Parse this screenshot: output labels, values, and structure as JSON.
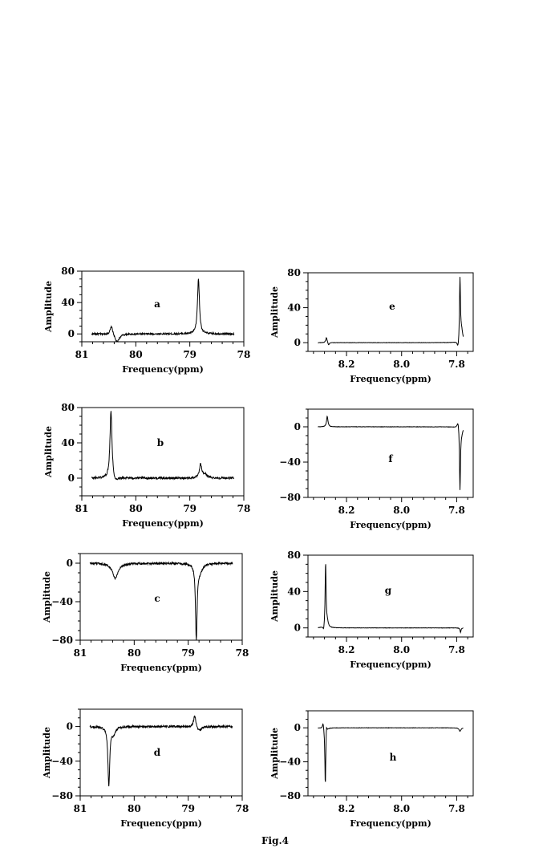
{
  "figure": {
    "caption": "Fig.4"
  },
  "chart_data": [
    {
      "id": "a",
      "type": "line",
      "label": "a",
      "xlabel": "Frequency(ppm)",
      "ylabel": "Amplitude",
      "xlim": [
        81,
        78
      ],
      "ylim": [
        -10,
        80
      ],
      "xticks": [
        "81",
        "80",
        "79",
        "78"
      ],
      "xtick_values": [
        81,
        80,
        79,
        78
      ],
      "yticks": [
        "0",
        "40",
        "80"
      ],
      "ytick_values": [
        0,
        40,
        80
      ],
      "series": [
        {
          "baseline": 0,
          "features": [
            {
              "pos": 80.45,
              "height": 11,
              "width": 0.03
            },
            {
              "pos": 80.35,
              "height": -11,
              "width": 0.05
            },
            {
              "pos": 78.84,
              "height": 70,
              "width": 0.022
            }
          ]
        }
      ]
    },
    {
      "id": "b",
      "type": "line",
      "label": "b",
      "xlabel": "Frequency(ppm)",
      "ylabel": "Amplitude",
      "xlim": [
        81,
        78
      ],
      "ylim": [
        -20,
        80
      ],
      "xticks": [
        "81",
        "80",
        "79",
        "78"
      ],
      "xtick_values": [
        81,
        80,
        79,
        78
      ],
      "yticks": [
        "0",
        "40",
        "80"
      ],
      "ytick_values": [
        0,
        40,
        80
      ],
      "series": [
        {
          "baseline": 0,
          "features": [
            {
              "pos": 80.46,
              "height": 78,
              "width": 0.022
            },
            {
              "pos": 80.38,
              "height": -6,
              "width": 0.04
            },
            {
              "pos": 78.8,
              "height": 15,
              "width": 0.025
            },
            {
              "pos": 78.72,
              "height": 4,
              "width": 0.05
            }
          ]
        }
      ]
    },
    {
      "id": "c",
      "type": "line",
      "label": "c",
      "xlabel": "Frequency(ppm)",
      "ylabel": "Amplitude",
      "xlim": [
        81,
        78
      ],
      "ylim": [
        -80,
        10
      ],
      "xticks": [
        "81",
        "80",
        "79",
        "78"
      ],
      "xtick_values": [
        81,
        80,
        79,
        78
      ],
      "yticks": [
        "0",
        "−40",
        "−80"
      ],
      "ytick_values": [
        0,
        -40,
        -80
      ],
      "series": [
        {
          "baseline": 0,
          "features": [
            {
              "pos": 80.35,
              "height": -16,
              "width": 0.06
            },
            {
              "pos": 78.85,
              "height": -77,
              "width": 0.018
            },
            {
              "pos": 78.78,
              "height": -8,
              "width": 0.05
            }
          ]
        }
      ]
    },
    {
      "id": "d",
      "type": "line",
      "label": "d",
      "xlabel": "Frequency(ppm)",
      "ylabel": "Amplitude",
      "xlim": [
        81,
        78
      ],
      "ylim": [
        -80,
        20
      ],
      "xticks": [
        "81",
        "80",
        "79",
        "78"
      ],
      "xtick_values": [
        81,
        80,
        79,
        78
      ],
      "yticks": [
        "0",
        "−40",
        "−80"
      ],
      "ytick_values": [
        0,
        -40,
        -80
      ],
      "series": [
        {
          "baseline": 0,
          "features": [
            {
              "pos": 80.47,
              "height": -68,
              "width": 0.02
            },
            {
              "pos": 80.38,
              "height": -8,
              "width": 0.04
            },
            {
              "pos": 78.88,
              "height": 14,
              "width": 0.025
            },
            {
              "pos": 78.8,
              "height": -5,
              "width": 0.05
            }
          ]
        }
      ]
    },
    {
      "id": "e",
      "type": "line",
      "label": "e",
      "xlabel": "Frequency(ppm)",
      "ylabel": "Amplitude",
      "xlim": [
        8.34,
        7.74
      ],
      "ylim": [
        -10,
        80
      ],
      "xticks": [
        "8.2",
        "8.0",
        "7.8"
      ],
      "xtick_values": [
        8.2,
        8.0,
        7.8
      ],
      "yticks": [
        "0",
        "40",
        "80"
      ],
      "ytick_values": [
        0,
        40,
        80
      ],
      "series": [
        {
          "baseline": 0,
          "features": [
            {
              "pos": 8.273,
              "height": 6,
              "width": 0.003
            },
            {
              "pos": 8.265,
              "height": -3,
              "width": 0.003
            },
            {
              "pos": 7.795,
              "height": -9,
              "width": 0.004
            },
            {
              "pos": 7.788,
              "height": 73,
              "width": 0.002
            },
            {
              "pos": 7.782,
              "height": 13,
              "width": 0.005
            }
          ]
        }
      ]
    },
    {
      "id": "f",
      "type": "line",
      "label": "f",
      "xlabel": "Frequency(ppm)",
      "ylabel": "",
      "xlim": [
        8.34,
        7.74
      ],
      "ylim": [
        -80,
        20
      ],
      "xticks": [
        "8.2",
        "8.0",
        "7.8"
      ],
      "xtick_values": [
        8.2,
        8.0,
        7.8
      ],
      "yticks": [
        "0",
        "−40",
        "−80"
      ],
      "ytick_values": [
        0,
        -40,
        -80
      ],
      "series": [
        {
          "baseline": 0,
          "features": [
            {
              "pos": 8.27,
              "height": 12,
              "width": 0.003
            },
            {
              "pos": 7.795,
              "height": 9,
              "width": 0.004
            },
            {
              "pos": 7.788,
              "height": -72,
              "width": 0.002
            },
            {
              "pos": 7.782,
              "height": -6,
              "width": 0.005
            }
          ]
        }
      ]
    },
    {
      "id": "g",
      "type": "line",
      "label": "g",
      "xlabel": "Frequency(ppm)",
      "ylabel": "Amplitude",
      "xlim": [
        8.34,
        7.74
      ],
      "ylim": [
        -10,
        80
      ],
      "xticks": [
        "8.2",
        "8.0",
        "7.8"
      ],
      "xtick_values": [
        8.2,
        8.0,
        7.8
      ],
      "yticks": [
        "0",
        "40",
        "80"
      ],
      "ytick_values": [
        0,
        40,
        80
      ],
      "series": [
        {
          "baseline": 0,
          "features": [
            {
              "pos": 8.283,
              "height": -6,
              "width": 0.003
            },
            {
              "pos": 8.276,
              "height": 72,
              "width": 0.002
            },
            {
              "pos": 8.27,
              "height": 6,
              "width": 0.004
            },
            {
              "pos": 7.786,
              "height": -5,
              "width": 0.002
            }
          ]
        }
      ]
    },
    {
      "id": "h",
      "type": "line",
      "label": "h",
      "xlabel": "Frequency(ppm)",
      "ylabel": "Amplitude",
      "xlim": [
        8.34,
        7.74
      ],
      "ylim": [
        -80,
        20
      ],
      "xticks": [
        "8.2",
        "8.0",
        "7.8"
      ],
      "xtick_values": [
        8.2,
        8.0,
        7.8
      ],
      "yticks": [
        "0",
        "−40",
        "−80"
      ],
      "ytick_values": [
        0,
        -40,
        -80
      ],
      "series": [
        {
          "baseline": 0,
          "features": [
            {
              "pos": 8.285,
              "height": 8,
              "width": 0.003
            },
            {
              "pos": 8.277,
              "height": -70,
              "width": 0.002
            },
            {
              "pos": 8.273,
              "height": 12,
              "width": 0.002
            },
            {
              "pos": 7.788,
              "height": -4,
              "width": 0.004
            }
          ]
        }
      ]
    }
  ]
}
